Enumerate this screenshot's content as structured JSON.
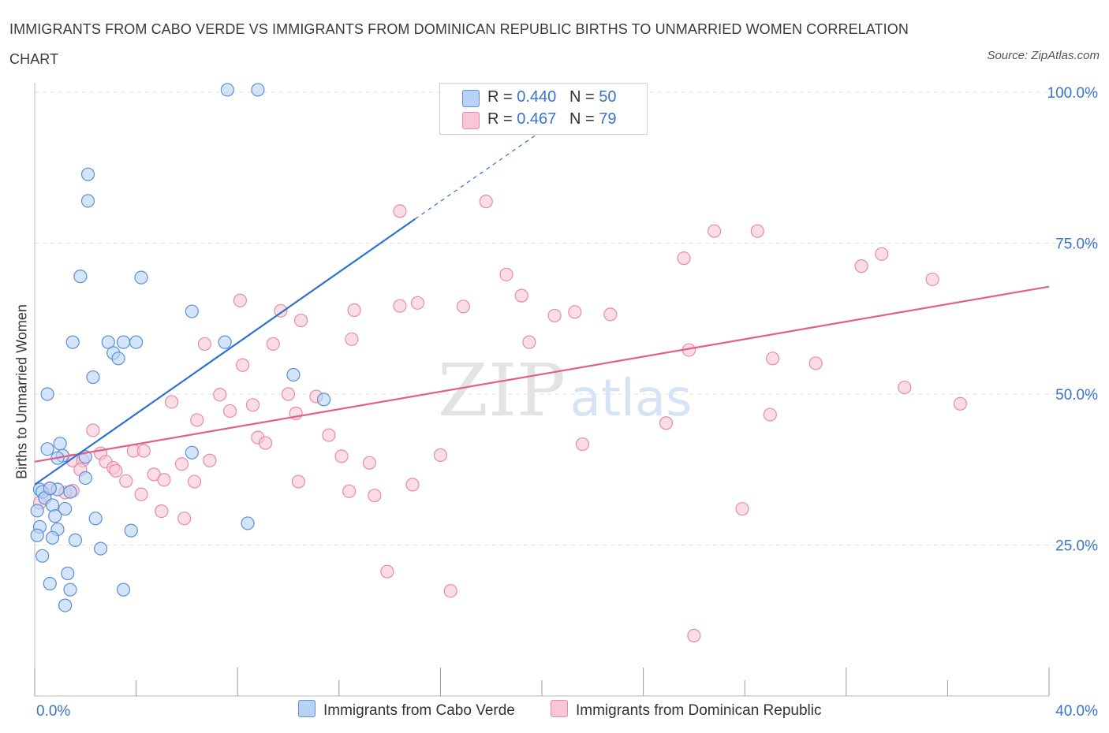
{
  "title": "IMMIGRANTS FROM CABO VERDE VS IMMIGRANTS FROM DOMINICAN REPUBLIC BIRTHS TO UNMARRIED WOMEN CORRELATION CHART",
  "source": "Source: ZipAtlas.com",
  "watermark": {
    "zip": "ZIP",
    "atlas": "atlas"
  },
  "legend": {
    "rows": [
      {
        "r_label": "R = ",
        "r_value": "0.440",
        "n_label": "N = ",
        "n_value": "50"
      },
      {
        "r_label": "R = ",
        "r_value": "0.467",
        "n_label": "N = ",
        "n_value": "79"
      }
    ]
  },
  "colors": {
    "blue_fill": "#b8d3f5",
    "blue_stroke": "#5b8fd6",
    "blue_line": "#2e72cf",
    "pink_fill": "#f8c7d6",
    "pink_stroke": "#e88aa8",
    "pink_line": "#e0608a",
    "axis_text": "#3a74c9",
    "grid": "#e2e2e2"
  },
  "chart_data": {
    "type": "scatter",
    "title": "IMMIGRANTS FROM CABO VERDE VS IMMIGRANTS FROM DOMINICAN REPUBLIC BIRTHS TO UNMARRIED WOMEN CORRELATION CHART",
    "xlabel": "",
    "ylabel": "Births to Unmarried Women",
    "xlim": [
      0,
      40
    ],
    "ylim": [
      0,
      100
    ],
    "x_tick_labels": [
      "0.0%",
      "40.0%"
    ],
    "y_ticks": [
      25,
      50,
      75,
      100
    ],
    "y_tick_labels": [
      "25.0%",
      "50.0%",
      "75.0%",
      "100.0%"
    ],
    "grid": true,
    "series": [
      {
        "name": "Immigrants from Cabo Verde",
        "color": "blue",
        "R": 0.44,
        "N": 50,
        "trend": {
          "x": [
            0.0,
            15.0
          ],
          "y": [
            35.0,
            79.0
          ]
        },
        "trend_extension": {
          "x": [
            15.0,
            21.5
          ],
          "y": [
            79.0,
            98.0
          ]
        },
        "points": [
          [
            7.6,
            100.4
          ],
          [
            8.8,
            100.4
          ],
          [
            2.1,
            86.4
          ],
          [
            2.1,
            82.0
          ],
          [
            1.8,
            69.5
          ],
          [
            4.2,
            69.3
          ],
          [
            6.2,
            63.7
          ],
          [
            1.5,
            58.6
          ],
          [
            2.9,
            58.6
          ],
          [
            3.5,
            58.6
          ],
          [
            4.0,
            58.6
          ],
          [
            7.5,
            58.6
          ],
          [
            3.1,
            56.8
          ],
          [
            3.3,
            55.9
          ],
          [
            2.3,
            52.8
          ],
          [
            10.2,
            53.2
          ],
          [
            0.5,
            50.0
          ],
          [
            11.4,
            49.1
          ],
          [
            0.5,
            40.9
          ],
          [
            1.0,
            41.8
          ],
          [
            1.1,
            39.8
          ],
          [
            0.9,
            39.4
          ],
          [
            6.2,
            40.3
          ],
          [
            2.0,
            39.6
          ],
          [
            2.0,
            36.1
          ],
          [
            0.2,
            34.2
          ],
          [
            0.3,
            33.8
          ],
          [
            1.4,
            33.8
          ],
          [
            0.9,
            34.2
          ],
          [
            0.4,
            32.8
          ],
          [
            0.7,
            31.6
          ],
          [
            1.2,
            31.0
          ],
          [
            0.8,
            29.8
          ],
          [
            2.4,
            29.4
          ],
          [
            8.4,
            28.6
          ],
          [
            0.2,
            28.0
          ],
          [
            0.9,
            27.6
          ],
          [
            3.8,
            27.4
          ],
          [
            0.1,
            26.6
          ],
          [
            0.7,
            26.2
          ],
          [
            1.6,
            25.8
          ],
          [
            2.6,
            24.4
          ],
          [
            0.3,
            23.2
          ],
          [
            1.3,
            20.3
          ],
          [
            0.6,
            18.6
          ],
          [
            1.4,
            17.6
          ],
          [
            3.5,
            17.6
          ],
          [
            1.2,
            15.0
          ],
          [
            0.1,
            30.7
          ],
          [
            0.6,
            34.4
          ]
        ]
      },
      {
        "name": "Immigrants from Dominican Republic",
        "color": "pink",
        "R": 0.467,
        "N": 79,
        "trend": {
          "x": [
            0.0,
            40.0
          ],
          "y": [
            38.8,
            67.8
          ]
        },
        "points": [
          [
            14.4,
            80.3
          ],
          [
            17.8,
            81.9
          ],
          [
            26.8,
            77.0
          ],
          [
            28.5,
            77.0
          ],
          [
            25.6,
            72.5
          ],
          [
            33.4,
            73.2
          ],
          [
            32.6,
            71.2
          ],
          [
            35.4,
            69.0
          ],
          [
            18.6,
            69.8
          ],
          [
            19.2,
            66.3
          ],
          [
            8.1,
            65.5
          ],
          [
            14.4,
            64.6
          ],
          [
            15.1,
            65.1
          ],
          [
            16.9,
            64.5
          ],
          [
            9.7,
            63.8
          ],
          [
            10.5,
            62.2
          ],
          [
            12.6,
            63.9
          ],
          [
            20.5,
            63.0
          ],
          [
            21.3,
            63.6
          ],
          [
            22.7,
            63.2
          ],
          [
            6.7,
            58.3
          ],
          [
            9.4,
            58.3
          ],
          [
            12.5,
            59.1
          ],
          [
            19.5,
            58.6
          ],
          [
            25.8,
            57.3
          ],
          [
            29.1,
            55.9
          ],
          [
            30.8,
            55.1
          ],
          [
            8.2,
            54.8
          ],
          [
            7.3,
            49.9
          ],
          [
            10.0,
            50.0
          ],
          [
            11.1,
            49.6
          ],
          [
            8.6,
            48.2
          ],
          [
            5.4,
            48.7
          ],
          [
            34.3,
            51.1
          ],
          [
            36.5,
            48.4
          ],
          [
            7.7,
            47.2
          ],
          [
            10.3,
            46.8
          ],
          [
            6.4,
            45.7
          ],
          [
            29.0,
            46.6
          ],
          [
            24.9,
            45.2
          ],
          [
            2.3,
            44.0
          ],
          [
            11.6,
            43.2
          ],
          [
            8.8,
            42.8
          ],
          [
            9.1,
            41.9
          ],
          [
            21.6,
            41.7
          ],
          [
            16.0,
            39.9
          ],
          [
            2.6,
            40.2
          ],
          [
            3.9,
            40.6
          ],
          [
            4.3,
            40.6
          ],
          [
            12.1,
            39.7
          ],
          [
            1.5,
            39.0
          ],
          [
            1.9,
            39.0
          ],
          [
            2.8,
            38.8
          ],
          [
            6.9,
            39.0
          ],
          [
            13.2,
            38.6
          ],
          [
            5.8,
            38.4
          ],
          [
            3.1,
            37.8
          ],
          [
            3.2,
            37.3
          ],
          [
            1.8,
            37.5
          ],
          [
            4.7,
            36.7
          ],
          [
            10.4,
            35.5
          ],
          [
            5.1,
            35.8
          ],
          [
            6.3,
            35.5
          ],
          [
            3.6,
            35.6
          ],
          [
            14.9,
            35.0
          ],
          [
            12.4,
            33.9
          ],
          [
            13.4,
            33.2
          ],
          [
            4.2,
            33.4
          ],
          [
            1.5,
            34.0
          ],
          [
            0.6,
            34.3
          ],
          [
            1.2,
            33.7
          ],
          [
            0.4,
            32.9
          ],
          [
            27.9,
            31.0
          ],
          [
            5.0,
            30.6
          ],
          [
            5.9,
            29.4
          ],
          [
            13.9,
            20.6
          ],
          [
            16.4,
            17.4
          ],
          [
            26.0,
            10.0
          ],
          [
            0.2,
            32.0
          ]
        ]
      }
    ]
  },
  "bottom_legend": {
    "items": [
      {
        "label": "Immigrants from Cabo Verde",
        "color": "blue"
      },
      {
        "label": "Immigrants from Dominican Republic",
        "color": "pink"
      }
    ]
  }
}
